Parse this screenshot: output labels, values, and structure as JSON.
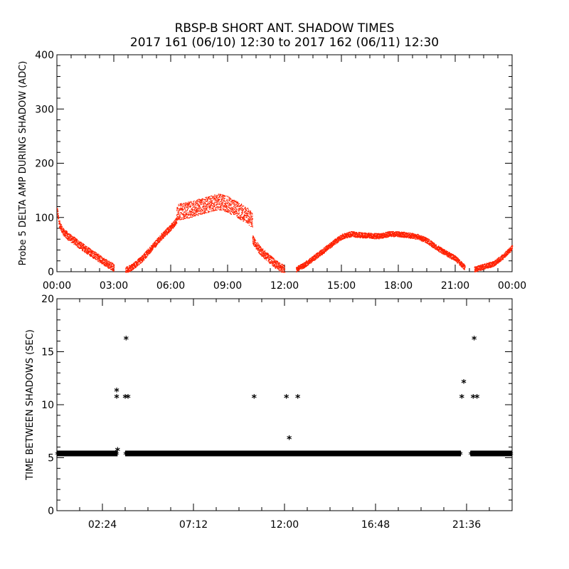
{
  "title": "RBSP-B SHORT ANT. SHADOW TIMES",
  "subtitle": "2017 161 (06/10) 12:30 to 2017 162 (06/11) 12:30",
  "chart_data": [
    {
      "type": "scatter",
      "ylabel": "Probe 5 DELTA AMP DURING SHADOW (ADC)",
      "xlabel": "",
      "x_unit": "hours",
      "xlim": [
        0,
        24
      ],
      "ylim": [
        0,
        400
      ],
      "x_ticks": [
        0,
        3,
        6,
        9,
        12,
        15,
        18,
        21,
        24
      ],
      "x_tick_labels": [
        "00:00",
        "03:00",
        "06:00",
        "09:00",
        "12:00",
        "15:00",
        "18:00",
        "21:00",
        "00:00"
      ],
      "y_ticks": [
        0,
        100,
        200,
        300,
        400
      ],
      "y_tick_labels": [
        "0",
        "100",
        "200",
        "300",
        "400"
      ],
      "color": "#ff2000",
      "series": [
        {
          "segments": [
            {
              "x": [
                0.0,
                0.1,
                0.3,
                0.6,
                1.0,
                1.5,
                2.0,
                2.5,
                3.0
              ],
              "y": [
                115,
                90,
                75,
                65,
                55,
                42,
                30,
                18,
                8
              ],
              "spread": 14
            },
            {
              "x": [
                3.6,
                4.0,
                4.5,
                5.0,
                5.5,
                6.0,
                6.3
              ],
              "y": [
                3,
                10,
                25,
                45,
                65,
                82,
                95
              ],
              "spread": 12
            },
            {
              "x": [
                6.3,
                7.0,
                7.5,
                8.0,
                8.5,
                9.0,
                9.5,
                10.0,
                10.3
              ],
              "y": [
                110,
                115,
                120,
                125,
                130,
                125,
                115,
                105,
                95
              ],
              "spread": 30
            },
            {
              "x": [
                10.3,
                10.7,
                11.0,
                11.5,
                12.0
              ],
              "y": [
                60,
                40,
                30,
                15,
                3
              ],
              "spread": 16
            },
            {
              "x": [
                12.6,
                13.0,
                13.5,
                14.0,
                14.5,
                15.0,
                15.5,
                16.0,
                16.5,
                17.0,
                17.5,
                18.0,
                18.5,
                19.0,
                19.5,
                20.0,
                20.5,
                21.0,
                21.5
              ],
              "y": [
                5,
                12,
                25,
                38,
                52,
                65,
                70,
                68,
                67,
                66,
                70,
                70,
                68,
                65,
                58,
                45,
                35,
                25,
                8
              ],
              "spread": 10
            },
            {
              "x": [
                22.0,
                22.5,
                23.0,
                23.5,
                24.0
              ],
              "y": [
                5,
                10,
                15,
                28,
                45
              ],
              "spread": 10
            }
          ]
        }
      ]
    },
    {
      "type": "scatter",
      "ylabel": "TIME BETWEEN SHADOWS (SEC)",
      "xlabel": "",
      "x_unit": "hours",
      "xlim": [
        0,
        24
      ],
      "ylim": [
        0,
        20
      ],
      "x_ticks": [
        2.4,
        7.2,
        12.0,
        16.8,
        21.6
      ],
      "x_tick_labels": [
        "02:24",
        "07:12",
        "12:00",
        "16:48",
        "21:36"
      ],
      "y_ticks": [
        0,
        5,
        10,
        15,
        20
      ],
      "y_tick_labels": [
        "0",
        "5",
        "10",
        "15",
        "20"
      ],
      "marker": "*",
      "color": "#000000",
      "baseline": {
        "y": 5.4,
        "ranges": [
          [
            0.0,
            3.2
          ],
          [
            3.6,
            21.3
          ],
          [
            21.8,
            24.0
          ]
        ]
      },
      "points": [
        {
          "x": 3.15,
          "y": 11.3
        },
        {
          "x": 3.15,
          "y": 10.7
        },
        {
          "x": 3.2,
          "y": 5.7
        },
        {
          "x": 3.65,
          "y": 16.2
        },
        {
          "x": 3.6,
          "y": 10.7
        },
        {
          "x": 3.75,
          "y": 10.7
        },
        {
          "x": 10.4,
          "y": 10.7
        },
        {
          "x": 12.1,
          "y": 10.7
        },
        {
          "x": 12.25,
          "y": 6.8
        },
        {
          "x": 12.7,
          "y": 10.7
        },
        {
          "x": 21.35,
          "y": 10.7
        },
        {
          "x": 21.45,
          "y": 12.1
        },
        {
          "x": 22.0,
          "y": 16.2
        },
        {
          "x": 21.95,
          "y": 10.7
        },
        {
          "x": 22.15,
          "y": 10.7
        }
      ]
    }
  ]
}
